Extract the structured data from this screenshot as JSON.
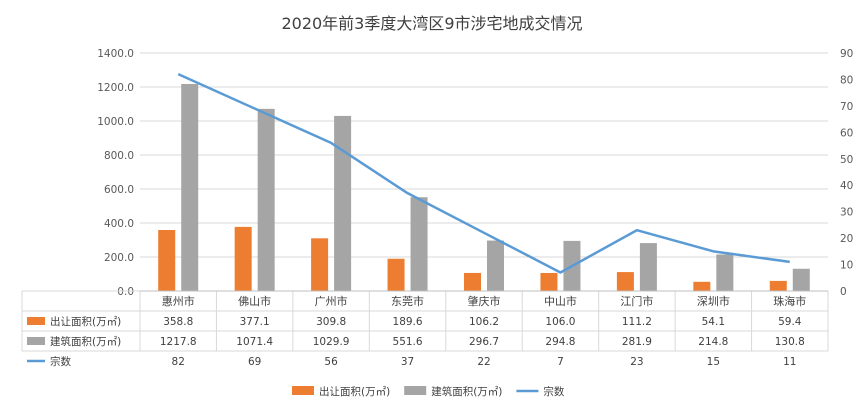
{
  "chart_data": {
    "type": "bar",
    "title": "2020年前3季度大湾区9市涉宅地成交情况",
    "categories": [
      "惠州市",
      "佛山市",
      "广州市",
      "东莞市",
      "肇庆市",
      "中山市",
      "江门市",
      "深圳市",
      "珠海市"
    ],
    "series": [
      {
        "name": "出让面积(万㎡)",
        "type": "bar",
        "axis": "left",
        "color": "#ED7D31",
        "values": [
          358.8,
          377.1,
          309.8,
          189.6,
          106.2,
          106.0,
          111.2,
          54.1,
          59.4
        ],
        "labels": [
          "358.8",
          "377.1",
          "309.8",
          "189.6",
          "106.2",
          "106.0",
          "111.2",
          "54.1",
          "59.4"
        ]
      },
      {
        "name": "建筑面积(万㎡)",
        "type": "bar",
        "axis": "left",
        "color": "#A5A5A5",
        "values": [
          1217.8,
          1071.4,
          1029.9,
          551.6,
          296.7,
          294.8,
          281.9,
          214.8,
          130.8
        ],
        "labels": [
          "1217.8",
          "1071.4",
          "1029.9",
          "551.6",
          "296.7",
          "294.8",
          "281.9",
          "214.8",
          "130.8"
        ]
      },
      {
        "name": "宗数",
        "type": "line",
        "axis": "right",
        "color": "#5B9BD5",
        "values": [
          82,
          69,
          56,
          37,
          22,
          7,
          23,
          15,
          11
        ],
        "labels": [
          "82",
          "69",
          "56",
          "37",
          "22",
          "7",
          "23",
          "15",
          "11"
        ]
      }
    ],
    "y_left": {
      "range": [
        0,
        1400
      ],
      "ticks": [
        0,
        200,
        400,
        600,
        800,
        1000,
        1200,
        1400
      ],
      "tick_labels": [
        "0.0",
        "200.0",
        "400.0",
        "600.0",
        "800.0",
        "1000.0",
        "1200.0",
        "1400.0"
      ]
    },
    "y_right": {
      "range": [
        0,
        90
      ],
      "ticks": [
        0,
        10,
        20,
        30,
        40,
        50,
        60,
        70,
        80,
        90
      ],
      "tick_labels": [
        "0",
        "10",
        "20",
        "30",
        "40",
        "50",
        "60",
        "70",
        "80",
        "90"
      ]
    },
    "grid": true,
    "data_table": true,
    "legend_position": "bottom"
  }
}
